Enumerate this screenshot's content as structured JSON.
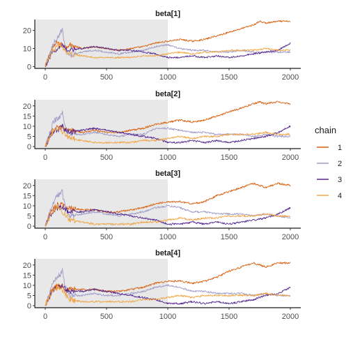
{
  "chart_data": {
    "type": "line",
    "x_range": [
      0,
      2000
    ],
    "x_ticks": [
      0,
      500,
      1000,
      1500,
      2000
    ],
    "warmup_end": 1000,
    "warmup_shade": "#e8e8e8",
    "legend": {
      "title": "chain",
      "placement": "right",
      "entries": [
        {
          "label": "1",
          "color": "#d95f0e"
        },
        {
          "label": "2",
          "color": "#9e9ac8"
        },
        {
          "label": "3",
          "color": "#54278f"
        },
        {
          "label": "4",
          "color": "#f0a442"
        }
      ]
    },
    "panels": [
      {
        "title": "beta[1]",
        "y_ticks": [
          0,
          10,
          20
        ],
        "y_range": [
          -1,
          26
        ],
        "series": [
          {
            "chain": "1",
            "x": [
              0,
              40,
              60,
              80,
              100,
              120,
              140,
              160,
              200,
              300,
              400,
              500,
              600,
              700,
              800,
              900,
              1000,
              1100,
              1200,
              1300,
              1400,
              1500,
              1600,
              1700,
              1750,
              1800,
              1900,
              2000
            ],
            "y": [
              0,
              8,
              10,
              12,
              14,
              12,
              13,
              11,
              12,
              10,
              11,
              10,
              9,
              10,
              11,
              13,
              14,
              15,
              14,
              15,
              17,
              19,
              21,
              23,
              25,
              24,
              25,
              25
            ]
          },
          {
            "chain": "2",
            "x": [
              0,
              40,
              60,
              80,
              100,
              120,
              140,
              160,
              200,
              300,
              400,
              500,
              600,
              700,
              800,
              900,
              1000,
              1100,
              1200,
              1300,
              1400,
              1500,
              1600,
              1700,
              1800,
              1900,
              2000
            ],
            "y": [
              0,
              7,
              12,
              14,
              16,
              18,
              21,
              11,
              6,
              8,
              9,
              8,
              7,
              8,
              9,
              11,
              12,
              10,
              9,
              9,
              8,
              8,
              9,
              8,
              8,
              8,
              8
            ]
          },
          {
            "chain": "3",
            "x": [
              0,
              40,
              60,
              80,
              100,
              120,
              140,
              160,
              200,
              300,
              400,
              500,
              600,
              700,
              800,
              900,
              1000,
              1100,
              1200,
              1300,
              1400,
              1500,
              1600,
              1700,
              1800,
              1900,
              2000
            ],
            "y": [
              0,
              5,
              8,
              9,
              10,
              11,
              12,
              10,
              9,
              10,
              11,
              10,
              9,
              9,
              8,
              7,
              5,
              5,
              6,
              5,
              6,
              5,
              6,
              7,
              8,
              9,
              13
            ]
          },
          {
            "chain": "4",
            "x": [
              0,
              40,
              60,
              80,
              100,
              120,
              140,
              160,
              200,
              300,
              400,
              500,
              600,
              700,
              800,
              900,
              1000,
              1100,
              1200,
              1300,
              1400,
              1500,
              1600,
              1700,
              1800,
              1900,
              2000
            ],
            "y": [
              0,
              6,
              9,
              10,
              11,
              12,
              10,
              9,
              7,
              6,
              5,
              5,
              5,
              5,
              6,
              6,
              7,
              8,
              7,
              8,
              8,
              9,
              9,
              9,
              10,
              9,
              9
            ]
          }
        ]
      },
      {
        "title": "beta[2]",
        "y_ticks": [
          0,
          5,
          10,
          15,
          20
        ],
        "y_range": [
          -1,
          23
        ],
        "series": [
          {
            "chain": "1",
            "x": [
              0,
              40,
              60,
              80,
              100,
              120,
              140,
              160,
              200,
              300,
              400,
              500,
              600,
              700,
              800,
              900,
              1000,
              1100,
              1200,
              1300,
              1400,
              1500,
              1600,
              1700,
              1750,
              1800,
              1900,
              2000
            ],
            "y": [
              0,
              6,
              8,
              9,
              10,
              9,
              10,
              8,
              8,
              7,
              8,
              7,
              7,
              8,
              9,
              11,
              12,
              13,
              12,
              13,
              15,
              17,
              19,
              21,
              22,
              21,
              22,
              21
            ]
          },
          {
            "chain": "2",
            "x": [
              0,
              40,
              60,
              80,
              100,
              120,
              140,
              160,
              200,
              300,
              400,
              500,
              600,
              700,
              800,
              900,
              1000,
              1100,
              1200,
              1300,
              1400,
              1500,
              1600,
              1700,
              1800,
              1900,
              2000
            ],
            "y": [
              0,
              7,
              11,
              13,
              14,
              15,
              17,
              10,
              6,
              6,
              7,
              6,
              5,
              6,
              6,
              9,
              9,
              8,
              7,
              7,
              6,
              6,
              6,
              5,
              6,
              5,
              5
            ]
          },
          {
            "chain": "3",
            "x": [
              0,
              40,
              60,
              80,
              100,
              120,
              140,
              160,
              200,
              300,
              400,
              500,
              600,
              700,
              800,
              900,
              1000,
              1100,
              1200,
              1300,
              1400,
              1500,
              1600,
              1700,
              1800,
              1900,
              2000
            ],
            "y": [
              0,
              5,
              7,
              8,
              8,
              9,
              10,
              8,
              7,
              8,
              9,
              8,
              7,
              6,
              5,
              4,
              2,
              2,
              3,
              2,
              3,
              2,
              3,
              4,
              5,
              7,
              10
            ]
          },
          {
            "chain": "4",
            "x": [
              0,
              40,
              60,
              80,
              100,
              120,
              140,
              160,
              200,
              300,
              400,
              500,
              600,
              700,
              800,
              900,
              1000,
              1100,
              1200,
              1300,
              1400,
              1500,
              1600,
              1700,
              1800,
              1900,
              2000
            ],
            "y": [
              0,
              5,
              7,
              8,
              9,
              9,
              7,
              6,
              4,
              3,
              2,
              2,
              2,
              2,
              3,
              3,
              4,
              5,
              4,
              5,
              5,
              6,
              6,
              6,
              7,
              6,
              6
            ]
          }
        ]
      },
      {
        "title": "beta[3]",
        "y_ticks": [
          0,
          5,
          10,
          15,
          20
        ],
        "y_range": [
          -1,
          23
        ],
        "series": [
          {
            "chain": "1",
            "x": [
              0,
              40,
              60,
              80,
              100,
              120,
              140,
              160,
              200,
              300,
              400,
              500,
              600,
              700,
              800,
              900,
              1000,
              1100,
              1200,
              1300,
              1400,
              1500,
              1600,
              1700,
              1750,
              1800,
              1900,
              2000
            ],
            "y": [
              0,
              7,
              9,
              10,
              11,
              10,
              11,
              9,
              9,
              8,
              8,
              7,
              7,
              8,
              9,
              11,
              12,
              12,
              11,
              12,
              15,
              17,
              19,
              21,
              20,
              19,
              21,
              20
            ]
          },
          {
            "chain": "2",
            "x": [
              0,
              40,
              60,
              80,
              100,
              120,
              140,
              160,
              200,
              300,
              400,
              500,
              600,
              700,
              800,
              900,
              1000,
              1100,
              1200,
              1300,
              1400,
              1500,
              1600,
              1700,
              1800,
              1900,
              2000
            ],
            "y": [
              0,
              7,
              11,
              13,
              15,
              16,
              17,
              10,
              5,
              6,
              7,
              6,
              5,
              6,
              7,
              9,
              10,
              9,
              7,
              7,
              6,
              6,
              6,
              5,
              6,
              5,
              4
            ]
          },
          {
            "chain": "3",
            "x": [
              0,
              40,
              60,
              80,
              100,
              120,
              140,
              160,
              200,
              300,
              400,
              500,
              600,
              700,
              800,
              900,
              1000,
              1100,
              1200,
              1300,
              1400,
              1500,
              1600,
              1700,
              1800,
              1900,
              2000
            ],
            "y": [
              0,
              5,
              7,
              8,
              9,
              9,
              10,
              8,
              7,
              7,
              8,
              7,
              6,
              5,
              4,
              3,
              1,
              1,
              2,
              1,
              2,
              1,
              2,
              3,
              4,
              6,
              9
            ]
          },
          {
            "chain": "4",
            "x": [
              0,
              40,
              60,
              80,
              100,
              120,
              140,
              160,
              200,
              300,
              400,
              500,
              600,
              700,
              800,
              900,
              1000,
              1100,
              1200,
              1300,
              1400,
              1500,
              1600,
              1700,
              1800,
              1900,
              2000
            ],
            "y": [
              0,
              5,
              7,
              8,
              9,
              9,
              7,
              6,
              3,
              2,
              1,
              1,
              1,
              1,
              2,
              2,
              3,
              4,
              3,
              4,
              4,
              5,
              5,
              5,
              6,
              5,
              5
            ]
          }
        ]
      },
      {
        "title": "beta[4]",
        "y_ticks": [
          0,
          5,
          10,
          15,
          20
        ],
        "y_range": [
          -1,
          23
        ],
        "series": [
          {
            "chain": "1",
            "x": [
              0,
              40,
              60,
              80,
              100,
              120,
              140,
              160,
              200,
              300,
              400,
              500,
              600,
              700,
              800,
              900,
              1000,
              1100,
              1200,
              1300,
              1400,
              1500,
              1600,
              1700,
              1750,
              1800,
              1900,
              2000
            ],
            "y": [
              0,
              6,
              8,
              9,
              10,
              9,
              10,
              8,
              8,
              8,
              8,
              7,
              7,
              8,
              9,
              11,
              12,
              12,
              11,
              12,
              14,
              17,
              19,
              21,
              20,
              19,
              21,
              21
            ]
          },
          {
            "chain": "2",
            "x": [
              0,
              40,
              60,
              80,
              100,
              120,
              140,
              160,
              200,
              300,
              400,
              500,
              600,
              700,
              800,
              900,
              1000,
              1100,
              1200,
              1300,
              1400,
              1500,
              1600,
              1700,
              1800,
              1900,
              2000
            ],
            "y": [
              0,
              7,
              11,
              13,
              14,
              15,
              17,
              10,
              5,
              5,
              6,
              5,
              5,
              6,
              7,
              9,
              10,
              9,
              7,
              7,
              6,
              6,
              6,
              5,
              6,
              5,
              5
            ]
          },
          {
            "chain": "3",
            "x": [
              0,
              40,
              60,
              80,
              100,
              120,
              140,
              160,
              200,
              300,
              400,
              500,
              600,
              700,
              800,
              900,
              1000,
              1100,
              1200,
              1300,
              1400,
              1500,
              1600,
              1700,
              1800,
              1900,
              2000
            ],
            "y": [
              0,
              5,
              7,
              8,
              9,
              9,
              10,
              8,
              7,
              7,
              8,
              7,
              6,
              5,
              4,
              3,
              1,
              1,
              2,
              1,
              2,
              1,
              2,
              3,
              5,
              6,
              9
            ]
          },
          {
            "chain": "4",
            "x": [
              0,
              40,
              60,
              80,
              100,
              120,
              140,
              160,
              200,
              300,
              400,
              500,
              600,
              700,
              800,
              900,
              1000,
              1100,
              1200,
              1300,
              1400,
              1500,
              1600,
              1700,
              1800,
              1900,
              2000
            ],
            "y": [
              0,
              5,
              7,
              8,
              9,
              9,
              7,
              6,
              3,
              2,
              2,
              2,
              2,
              2,
              3,
              3,
              4,
              5,
              4,
              5,
              5,
              5,
              5,
              5,
              6,
              5,
              5
            ]
          }
        ]
      }
    ]
  }
}
